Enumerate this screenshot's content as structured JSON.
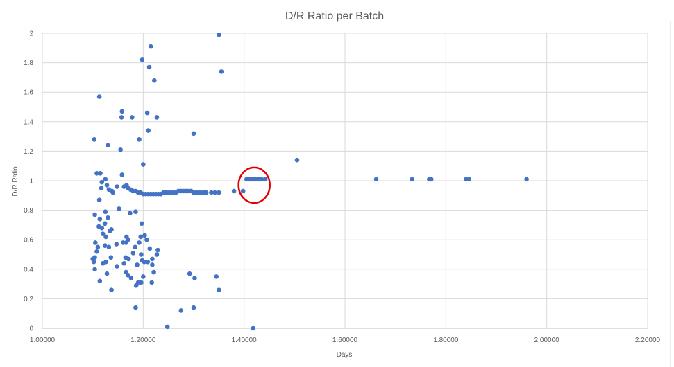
{
  "chart_data": {
    "type": "scatter",
    "title": "D/R Ratio per Batch",
    "xlabel": "Days",
    "ylabel": "D/R Ratio",
    "xlim": [
      1.0,
      2.2
    ],
    "ylim": [
      0,
      2
    ],
    "x_ticks": [
      "1.00000",
      "1.20000",
      "1.40000",
      "1.60000",
      "1.80000",
      "2.00000",
      "2.20000"
    ],
    "y_ticks": [
      "0",
      "0.2",
      "0.4",
      "0.6",
      "0.8",
      "1",
      "1.2",
      "1.4",
      "1.6",
      "1.8",
      "2"
    ],
    "grid": true,
    "legend": "none",
    "marker_color": "#4472C4",
    "highlight": {
      "shape": "ellipse",
      "color": "#E00000",
      "center": [
        1.42,
        0.97
      ],
      "semi_axes": [
        0.031,
        0.12
      ]
    },
    "points": [
      [
        1.35,
        1.99
      ],
      [
        1.355,
        1.74
      ],
      [
        1.215,
        1.91
      ],
      [
        1.198,
        1.82
      ],
      [
        1.212,
        1.77
      ],
      [
        1.222,
        1.68
      ],
      [
        1.113,
        1.57
      ],
      [
        1.158,
        1.47
      ],
      [
        1.157,
        1.43
      ],
      [
        1.178,
        1.43
      ],
      [
        1.208,
        1.46
      ],
      [
        1.227,
        1.43
      ],
      [
        1.21,
        1.34
      ],
      [
        1.3,
        1.32
      ],
      [
        1.103,
        1.28
      ],
      [
        1.192,
        1.28
      ],
      [
        1.13,
        1.24
      ],
      [
        1.155,
        1.21
      ],
      [
        1.2,
        1.11
      ],
      [
        1.505,
        1.14
      ],
      [
        1.108,
        1.05
      ],
      [
        1.115,
        1.05
      ],
      [
        1.158,
        1.04
      ],
      [
        1.118,
        0.99
      ],
      [
        1.125,
        1.01
      ],
      [
        1.117,
        0.95
      ],
      [
        1.128,
        0.97
      ],
      [
        1.132,
        0.94
      ],
      [
        1.138,
        0.93
      ],
      [
        1.14,
        0.92
      ],
      [
        1.148,
        0.96
      ],
      [
        1.162,
        0.96
      ],
      [
        1.167,
        0.97
      ],
      [
        1.17,
        0.95
      ],
      [
        1.175,
        0.94
      ],
      [
        1.18,
        0.93
      ],
      [
        1.185,
        0.93
      ],
      [
        1.19,
        0.92
      ],
      [
        1.195,
        0.92
      ],
      [
        1.2,
        0.91
      ],
      [
        1.205,
        0.91
      ],
      [
        1.21,
        0.91
      ],
      [
        1.215,
        0.91
      ],
      [
        1.22,
        0.91
      ],
      [
        1.225,
        0.91
      ],
      [
        1.23,
        0.91
      ],
      [
        1.235,
        0.91
      ],
      [
        1.24,
        0.92
      ],
      [
        1.245,
        0.92
      ],
      [
        1.25,
        0.92
      ],
      [
        1.255,
        0.92
      ],
      [
        1.26,
        0.92
      ],
      [
        1.265,
        0.92
      ],
      [
        1.27,
        0.93
      ],
      [
        1.275,
        0.93
      ],
      [
        1.28,
        0.93
      ],
      [
        1.285,
        0.93
      ],
      [
        1.29,
        0.93
      ],
      [
        1.295,
        0.93
      ],
      [
        1.3,
        0.92
      ],
      [
        1.305,
        0.92
      ],
      [
        1.31,
        0.92
      ],
      [
        1.315,
        0.92
      ],
      [
        1.32,
        0.92
      ],
      [
        1.325,
        0.92
      ],
      [
        1.335,
        0.92
      ],
      [
        1.342,
        0.92
      ],
      [
        1.35,
        0.92
      ],
      [
        1.38,
        0.93
      ],
      [
        1.398,
        0.93
      ],
      [
        1.405,
        1.01
      ],
      [
        1.408,
        1.01
      ],
      [
        1.411,
        1.01
      ],
      [
        1.414,
        1.01
      ],
      [
        1.417,
        1.01
      ],
      [
        1.42,
        1.01
      ],
      [
        1.423,
        1.01
      ],
      [
        1.426,
        1.01
      ],
      [
        1.43,
        1.01
      ],
      [
        1.435,
        1.01
      ],
      [
        1.442,
        1.01
      ],
      [
        1.662,
        1.01
      ],
      [
        1.733,
        1.01
      ],
      [
        1.767,
        1.01
      ],
      [
        1.771,
        1.01
      ],
      [
        1.84,
        1.01
      ],
      [
        1.846,
        1.01
      ],
      [
        1.96,
        1.01
      ],
      [
        1.113,
        0.87
      ],
      [
        1.104,
        0.77
      ],
      [
        1.114,
        0.74
      ],
      [
        1.125,
        0.79
      ],
      [
        1.13,
        0.75
      ],
      [
        1.112,
        0.69
      ],
      [
        1.118,
        0.68
      ],
      [
        1.124,
        0.71
      ],
      [
        1.12,
        0.64
      ],
      [
        1.126,
        0.62
      ],
      [
        1.134,
        0.66
      ],
      [
        1.137,
        0.67
      ],
      [
        1.152,
        0.81
      ],
      [
        1.174,
        0.78
      ],
      [
        1.185,
        0.79
      ],
      [
        1.197,
        0.71
      ],
      [
        1.167,
        0.62
      ],
      [
        1.16,
        0.58
      ],
      [
        1.105,
        0.58
      ],
      [
        1.124,
        0.56
      ],
      [
        1.132,
        0.55
      ],
      [
        1.147,
        0.57
      ],
      [
        1.166,
        0.58
      ],
      [
        1.17,
        0.6
      ],
      [
        1.18,
        0.51
      ],
      [
        1.184,
        0.55
      ],
      [
        1.195,
        0.62
      ],
      [
        1.203,
        0.63
      ],
      [
        1.192,
        0.58
      ],
      [
        1.196,
        0.5
      ],
      [
        1.213,
        0.54
      ],
      [
        1.207,
        0.6
      ],
      [
        1.1,
        0.47
      ],
      [
        1.104,
        0.48
      ],
      [
        1.102,
        0.45
      ],
      [
        1.108,
        0.52
      ],
      [
        1.11,
        0.55
      ],
      [
        1.126,
        0.45
      ],
      [
        1.12,
        0.44
      ],
      [
        1.136,
        0.48
      ],
      [
        1.162,
        0.44
      ],
      [
        1.165,
        0.48
      ],
      [
        1.171,
        0.47
      ],
      [
        1.188,
        0.43
      ],
      [
        1.198,
        0.46
      ],
      [
        1.202,
        0.45
      ],
      [
        1.209,
        0.45
      ],
      [
        1.218,
        0.47
      ],
      [
        1.227,
        0.5
      ],
      [
        1.229,
        0.53
      ],
      [
        1.104,
        0.4
      ],
      [
        1.148,
        0.42
      ],
      [
        1.166,
        0.38
      ],
      [
        1.17,
        0.36
      ],
      [
        1.176,
        0.34
      ],
      [
        1.218,
        0.43
      ],
      [
        1.221,
        0.38
      ],
      [
        1.128,
        0.37
      ],
      [
        1.114,
        0.32
      ],
      [
        1.186,
        0.29
      ],
      [
        1.19,
        0.31
      ],
      [
        1.196,
        0.31
      ],
      [
        1.2,
        0.35
      ],
      [
        1.217,
        0.31
      ],
      [
        1.137,
        0.26
      ],
      [
        1.292,
        0.37
      ],
      [
        1.302,
        0.34
      ],
      [
        1.345,
        0.35
      ],
      [
        1.35,
        0.26
      ],
      [
        1.185,
        0.14
      ],
      [
        1.275,
        0.12
      ],
      [
        1.3,
        0.14
      ],
      [
        1.248,
        0.01
      ],
      [
        1.418,
        0.0
      ]
    ]
  }
}
